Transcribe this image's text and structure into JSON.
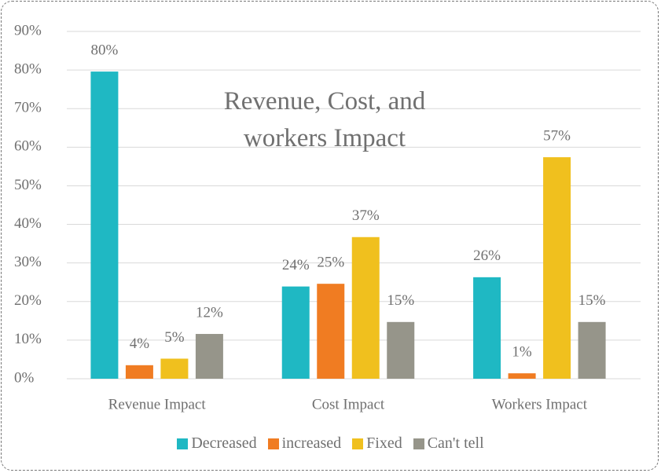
{
  "chart_data": {
    "type": "bar",
    "title": "Revenue, Cost, and workers Impact",
    "categories": [
      "Revenue Impact",
      "Cost Impact",
      "Workers Impact"
    ],
    "series": [
      {
        "name": "Decreased",
        "color": "#1fb8c3",
        "values": [
          79.6,
          23.9,
          26.3
        ],
        "value_labels": [
          "80%",
          "24%",
          "26%"
        ]
      },
      {
        "name": "increased",
        "color": "#f07c22",
        "values": [
          3.5,
          24.6,
          1.4
        ],
        "value_labels": [
          "4%",
          "25%",
          "1%"
        ]
      },
      {
        "name": "Fixed",
        "color": "#f0c01e",
        "values": [
          5.2,
          36.7,
          57.4
        ],
        "value_labels": [
          "5%",
          "37%",
          "57%"
        ]
      },
      {
        "name": "Can't tell",
        "color": "#96958a",
        "values": [
          11.6,
          14.7,
          14.7
        ],
        "value_labels": [
          "12%",
          "15%",
          "15%"
        ]
      }
    ],
    "ylim": [
      0,
      90
    ],
    "yticks": [
      {
        "value": 0,
        "label": "0%"
      },
      {
        "value": 10,
        "label": "10%"
      },
      {
        "value": 20,
        "label": "20%"
      },
      {
        "value": 30,
        "label": "30%"
      },
      {
        "value": 40,
        "label": "40%"
      },
      {
        "value": 50,
        "label": "50%"
      },
      {
        "value": 60,
        "label": "60%"
      },
      {
        "value": 70,
        "label": "70%"
      },
      {
        "value": 80,
        "label": "80%"
      },
      {
        "value": 90,
        "label": "90%"
      }
    ],
    "grid": true,
    "legend": "bottom"
  }
}
